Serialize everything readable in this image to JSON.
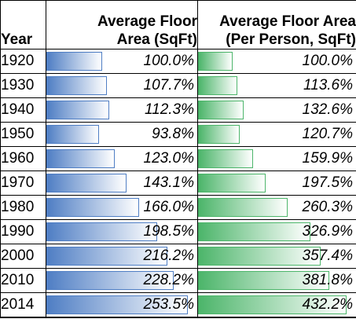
{
  "headers": {
    "year": "Year",
    "col1_line1": "Average Floor",
    "col1_line2": "Area (SqFt)",
    "col2_line1": "Average Floor Area",
    "col2_line2": "(Per Person, SqFt)"
  },
  "colors": {
    "blue_bar": "#4f7ec4",
    "green_bar": "#4cb56a"
  },
  "chart_data": {
    "type": "table",
    "columns": [
      "Year",
      "Average Floor Area (SqFt)",
      "Average Floor Area (Per Person, SqFt)"
    ],
    "bar_max": [
      270,
      460
    ],
    "rows": [
      {
        "year": "1920",
        "area": 100.0,
        "area_label": "100.0%",
        "pp": 100.0,
        "pp_label": "100.0%"
      },
      {
        "year": "1930",
        "area": 107.7,
        "area_label": "107.7%",
        "pp": 113.6,
        "pp_label": "113.6%"
      },
      {
        "year": "1940",
        "area": 112.3,
        "area_label": "112.3%",
        "pp": 132.6,
        "pp_label": "132.6%"
      },
      {
        "year": "1950",
        "area": 93.8,
        "area_label": "93.8%",
        "pp": 120.7,
        "pp_label": "120.7%"
      },
      {
        "year": "1960",
        "area": 123.0,
        "area_label": "123.0%",
        "pp": 159.9,
        "pp_label": "159.9%"
      },
      {
        "year": "1970",
        "area": 143.1,
        "area_label": "143.1%",
        "pp": 197.5,
        "pp_label": "197.5%"
      },
      {
        "year": "1980",
        "area": 166.0,
        "area_label": "166.0%",
        "pp": 260.3,
        "pp_label": "260.3%"
      },
      {
        "year": "1990",
        "area": 198.5,
        "area_label": "198.5%",
        "pp": 326.9,
        "pp_label": "326.9%"
      },
      {
        "year": "2000",
        "area": 216.2,
        "area_label": "216.2%",
        "pp": 357.4,
        "pp_label": "357.4%"
      },
      {
        "year": "2010",
        "area": 228.2,
        "area_label": "228.2%",
        "pp": 381.8,
        "pp_label": "381.8%"
      },
      {
        "year": "2014",
        "area": 253.5,
        "area_label": "253.5%",
        "pp": 432.2,
        "pp_label": "432.2%"
      }
    ]
  }
}
